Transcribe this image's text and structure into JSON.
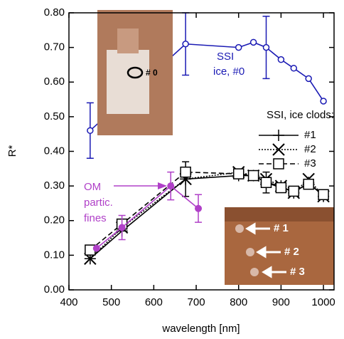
{
  "chart_data": {
    "type": "line",
    "xlabel": "wavelength [nm]",
    "ylabel": "R*",
    "xlim": [
      400,
      1025
    ],
    "ylim": [
      0,
      0.8
    ],
    "xticks": [
      400,
      500,
      600,
      700,
      800,
      900,
      1000
    ],
    "yticks": [
      {
        "value": 0,
        "label": "0.00"
      },
      {
        "value": 0.1,
        "label": "0.10"
      },
      {
        "value": 0.2,
        "label": "0.20"
      },
      {
        "value": 0.3,
        "label": "0.30"
      },
      {
        "value": 0.4,
        "label": "0.40"
      },
      {
        "value": 0.5,
        "label": "0.50"
      },
      {
        "value": 0.6,
        "label": "0.60"
      },
      {
        "value": 0.7,
        "label": "0.70"
      },
      {
        "value": 0.8,
        "label": "0.80"
      }
    ],
    "legend_title": "SSI, ice clods:",
    "series": [
      {
        "label": [
          "SSI",
          "ice, #0"
        ],
        "color": "#1a1ab4",
        "marker": "open-circle",
        "dash": "solid",
        "x": [
          450,
          675,
          800,
          835,
          865,
          900,
          930,
          965,
          1000
        ],
        "values": [
          0.46,
          0.71,
          0.7,
          0.715,
          0.7,
          0.665,
          0.64,
          0.61,
          0.545
        ],
        "errors": [
          0.08,
          0.09,
          null,
          null,
          0.09,
          null,
          null,
          null,
          null
        ]
      },
      {
        "name": "#1",
        "color": "#000000",
        "marker": "plus",
        "dash": "solid",
        "x": [
          450,
          525,
          675,
          800,
          835,
          865,
          900,
          930,
          965,
          1000
        ],
        "values": [
          0.09,
          0.17,
          0.32,
          0.33,
          0.33,
          0.31,
          0.3,
          0.28,
          0.31,
          0.27
        ],
        "errors": [
          null,
          null,
          0.05,
          null,
          null,
          0.03,
          null,
          null,
          null,
          null
        ]
      },
      {
        "name": "#2",
        "color": "#000000",
        "marker": "x",
        "dash": "dotted",
        "x": [
          450,
          525,
          675,
          800,
          835,
          865,
          900,
          930,
          965,
          1000
        ],
        "values": [
          0.09,
          0.18,
          0.32,
          0.34,
          0.33,
          0.32,
          0.3,
          0.28,
          0.32,
          0.27
        ],
        "errors": [
          null,
          null,
          null,
          null,
          null,
          null,
          null,
          null,
          null,
          null
        ]
      },
      {
        "name": "#3",
        "color": "#000000",
        "marker": "square",
        "dash": "dashed",
        "x": [
          450,
          525,
          675,
          800,
          835,
          865,
          900,
          930,
          965,
          1000
        ],
        "values": [
          0.115,
          0.19,
          0.34,
          0.335,
          0.33,
          0.31,
          0.295,
          0.285,
          0.305,
          0.275
        ],
        "errors": [
          null,
          null,
          null,
          null,
          null,
          null,
          null,
          null,
          null,
          null
        ]
      },
      {
        "label": [
          "OM",
          "partic.",
          "fines"
        ],
        "color": "#b040c8",
        "marker": "filled-circle",
        "dash": "solid",
        "x": [
          465,
          525,
          640,
          705
        ],
        "values": [
          0.12,
          0.18,
          0.3,
          0.235
        ],
        "errors": [
          null,
          0.035,
          0.04,
          0.04
        ]
      }
    ],
    "insets": [
      {
        "labels": [
          "# 0"
        ]
      },
      {
        "labels": [
          "# 1",
          "# 2",
          "# 3"
        ]
      }
    ]
  }
}
